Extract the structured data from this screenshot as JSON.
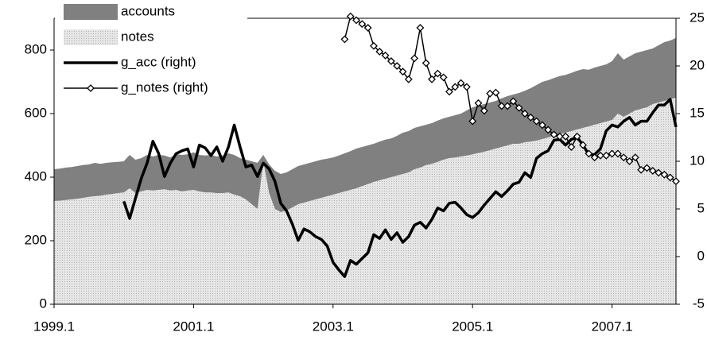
{
  "chart_data": {
    "type": "area",
    "categories": [
      "1999.1",
      null,
      null,
      null,
      null,
      null,
      null,
      null,
      null,
      null,
      null,
      null,
      null,
      null,
      null,
      null,
      null,
      null,
      null,
      null,
      null,
      null,
      null,
      null,
      "2001.1",
      null,
      null,
      null,
      null,
      null,
      null,
      null,
      null,
      null,
      null,
      null,
      null,
      null,
      null,
      null,
      null,
      null,
      null,
      null,
      null,
      null,
      null,
      null,
      "2003.1",
      null,
      null,
      null,
      null,
      null,
      null,
      null,
      null,
      null,
      null,
      null,
      null,
      null,
      null,
      null,
      null,
      null,
      null,
      null,
      null,
      null,
      null,
      null,
      "2005.1",
      null,
      null,
      null,
      null,
      null,
      null,
      null,
      null,
      null,
      null,
      null,
      null,
      null,
      null,
      null,
      null,
      null,
      null,
      null,
      null,
      null,
      null,
      null,
      "2007.1",
      null,
      null,
      null,
      null,
      null,
      null,
      null,
      null,
      null,
      null,
      null
    ],
    "series": [
      {
        "name": "accounts",
        "color": "#808080",
        "values": [
          100,
          101,
          102,
          102,
          103,
          103,
          102,
          105,
          100,
          100,
          100,
          98,
          98,
          105,
          105,
          105,
          110,
          107,
          110,
          106,
          104,
          112,
          115,
          114,
          118,
          115,
          116,
          118,
          115,
          118,
          123,
          125,
          120,
          125,
          135,
          145,
          20,
          90,
          120,
          120,
          120,
          120,
          120,
          120,
          120,
          120,
          120,
          118,
          117,
          118,
          120,
          122,
          125,
          123,
          122,
          120,
          122,
          123,
          122,
          125,
          130,
          130,
          130,
          130,
          127,
          128,
          130,
          130,
          130,
          133,
          135,
          142,
          148,
          149,
          150,
          150,
          150,
          153,
          155,
          155,
          160,
          162,
          168,
          175,
          180,
          180,
          182,
          183,
          182,
          183,
          185,
          185,
          178,
          180,
          180,
          180,
          185,
          190,
          180,
          180,
          180,
          180,
          180,
          175,
          180,
          185,
          185,
          188
        ]
      },
      {
        "name": "notes",
        "color": "#d9d9d9",
        "values": [
          325,
          326,
          328,
          330,
          332,
          335,
          338,
          340,
          342,
          345,
          347,
          350,
          352,
          365,
          350,
          355,
          360,
          358,
          360,
          362,
          358,
          360,
          355,
          358,
          360,
          355,
          352,
          352,
          350,
          350,
          352,
          345,
          340,
          330,
          315,
          300,
          450,
          350,
          300,
          290,
          295,
          305,
          315,
          320,
          325,
          330,
          335,
          340,
          345,
          350,
          355,
          360,
          365,
          372,
          378,
          385,
          390,
          395,
          400,
          405,
          410,
          415,
          425,
          430,
          438,
          442,
          448,
          455,
          460,
          462,
          465,
          468,
          472,
          476,
          480,
          485,
          490,
          495,
          500,
          505,
          505,
          510,
          512,
          515,
          520,
          525,
          530,
          535,
          540,
          545,
          550,
          555,
          560,
          565,
          570,
          575,
          580,
          600,
          590,
          600,
          610,
          615,
          620,
          630,
          635,
          640,
          645,
          650
        ]
      },
      {
        "name": "g_acc (right)",
        "type": "line",
        "axis": "y2",
        "color": "#000000",
        "values": [
          null,
          null,
          null,
          null,
          null,
          null,
          null,
          null,
          null,
          null,
          null,
          null,
          5.8,
          4.0,
          6.1,
          8.2,
          9.8,
          12.1,
          10.8,
          8.4,
          9.8,
          10.8,
          11.1,
          11.3,
          9.4,
          11.7,
          11.4,
          10.6,
          11.5,
          10.0,
          11.5,
          13.8,
          11.5,
          9.4,
          9.6,
          8.4,
          9.8,
          9.2,
          7.9,
          5.6,
          4.8,
          3.4,
          1.7,
          2.9,
          2.6,
          2.1,
          1.8,
          1.1,
          -0.6,
          -1.4,
          -2.1,
          -0.4,
          -0.8,
          -0.2,
          0.4,
          2.3,
          1.9,
          2.8,
          1.8,
          2.5,
          1.5,
          2.1,
          3.3,
          3.6,
          3.0,
          3.9,
          5.1,
          4.8,
          5.6,
          5.7,
          5.1,
          4.4,
          4.1,
          4.6,
          5.4,
          6.1,
          6.8,
          6.3,
          6.9,
          7.6,
          7.8,
          8.8,
          8.3,
          10.3,
          10.8,
          11.1,
          12.2,
          12.3,
          11.7,
          12.3,
          12.5,
          11.7,
          10.7,
          10.7,
          11.3,
          13.2,
          13.8,
          13.6,
          14.2,
          14.6,
          13.8,
          14.2,
          14.2,
          15.1,
          15.9,
          15.9,
          16.5,
          13.6
        ]
      },
      {
        "name": "g_notes (right)",
        "type": "line",
        "marker": "diamond",
        "axis": "y2",
        "color": "#000000",
        "values": [
          null,
          null,
          null,
          null,
          null,
          null,
          null,
          null,
          null,
          null,
          null,
          null,
          null,
          null,
          null,
          null,
          null,
          null,
          null,
          null,
          null,
          null,
          null,
          null,
          null,
          null,
          null,
          null,
          null,
          null,
          null,
          null,
          null,
          null,
          null,
          null,
          null,
          null,
          null,
          null,
          null,
          null,
          null,
          null,
          null,
          null,
          null,
          null,
          null,
          null,
          22.8,
          25.2,
          24.8,
          24.4,
          24.0,
          22.1,
          21.5,
          21.1,
          20.5,
          20.0,
          19.4,
          18.6,
          20.8,
          24.0,
          20.3,
          18.6,
          19.2,
          18.8,
          17.3,
          17.8,
          18.2,
          17.8,
          14.2,
          16.1,
          15.3,
          17.1,
          17.2,
          15.8,
          15.8,
          16.3,
          15.6,
          15.0,
          14.6,
          14.2,
          13.8,
          13.3,
          12.8,
          12.6,
          12.6,
          11.5,
          12.6,
          11.7,
          10.8,
          10.4,
          10.6,
          10.6,
          10.8,
          10.8,
          10.4,
          10.0,
          10.4,
          9.1,
          9.3,
          9.0,
          8.8,
          8.6,
          8.3,
          7.9
        ]
      }
    ],
    "ylim": [
      0,
      900
    ],
    "yticks": [
      0,
      200,
      400,
      600,
      800
    ],
    "y2lim": [
      -5,
      25
    ],
    "y2ticks": [
      -5,
      0,
      5,
      10,
      15,
      20,
      25
    ],
    "stacked": true,
    "legend": "top-left"
  }
}
